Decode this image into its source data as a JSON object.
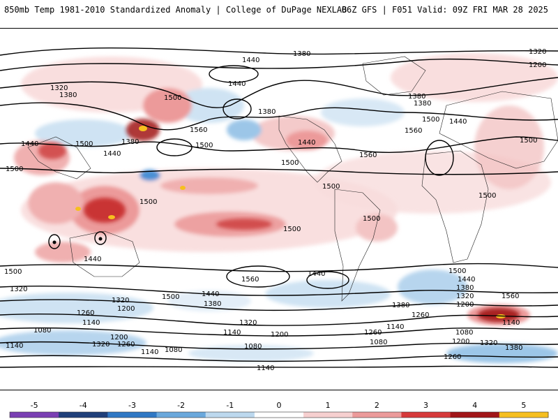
{
  "header": {
    "title_left": "850mb Temp 1981-2010 Standardized Anomaly | College of DuPage NEXLAB",
    "title_right": "06Z GFS | F051 Valid: 09Z FRI MAR 28 2025"
  },
  "map": {
    "field": "850mb temperature standardized anomaly",
    "projection": "global cylindrical",
    "contour_labels": [
      {
        "id": "l1",
        "text": "1380"
      },
      {
        "id": "l2",
        "text": "1320"
      },
      {
        "id": "l3",
        "text": "1200"
      },
      {
        "id": "l4",
        "text": "1440"
      },
      {
        "id": "l5",
        "text": "1320"
      },
      {
        "id": "l6",
        "text": "1380"
      },
      {
        "id": "l7",
        "text": "1500"
      },
      {
        "id": "l8",
        "text": "1440"
      },
      {
        "id": "l9",
        "text": "1380"
      },
      {
        "id": "l10",
        "text": "1560"
      },
      {
        "id": "l11",
        "text": "1500"
      },
      {
        "id": "l12",
        "text": "1440"
      },
      {
        "id": "l13",
        "text": "1500"
      },
      {
        "id": "l14",
        "text": "1440"
      },
      {
        "id": "l15",
        "text": "1380"
      },
      {
        "id": "l16",
        "text": "1500"
      },
      {
        "id": "l17",
        "text": "1500"
      },
      {
        "id": "l18",
        "text": "1560"
      },
      {
        "id": "l19",
        "text": "1500"
      },
      {
        "id": "l20",
        "text": "1500"
      },
      {
        "id": "l21",
        "text": "1500"
      },
      {
        "id": "l22",
        "text": "1440"
      },
      {
        "id": "l23",
        "text": "1500"
      },
      {
        "id": "l24",
        "text": "1560"
      },
      {
        "id": "l25",
        "text": "1500"
      },
      {
        "id": "l26",
        "text": "1380"
      },
      {
        "id": "l27",
        "text": "1440"
      },
      {
        "id": "l28",
        "text": "1500"
      },
      {
        "id": "l29",
        "text": "1380"
      },
      {
        "id": "l30",
        "text": "1500"
      },
      {
        "id": "l31",
        "text": "1440"
      },
      {
        "id": "l32",
        "text": "1380"
      },
      {
        "id": "l33",
        "text": "1260"
      },
      {
        "id": "l34",
        "text": "1320"
      },
      {
        "id": "l35",
        "text": "1200"
      },
      {
        "id": "l36",
        "text": "1140"
      },
      {
        "id": "l37",
        "text": "1080"
      },
      {
        "id": "l38",
        "text": "1200"
      },
      {
        "id": "l39",
        "text": "1320"
      },
      {
        "id": "l40",
        "text": "1260"
      },
      {
        "id": "l41",
        "text": "1140"
      },
      {
        "id": "l42",
        "text": "1080"
      },
      {
        "id": "l43",
        "text": "1260"
      },
      {
        "id": "l44",
        "text": "1320"
      },
      {
        "id": "l45",
        "text": "1140"
      },
      {
        "id": "l46",
        "text": "1200"
      },
      {
        "id": "l47",
        "text": "1080"
      },
      {
        "id": "l48",
        "text": "1140"
      },
      {
        "id": "l49",
        "text": "1380"
      },
      {
        "id": "l50",
        "text": "1260"
      },
      {
        "id": "l51",
        "text": "1140"
      },
      {
        "id": "l52",
        "text": "1080"
      },
      {
        "id": "l53",
        "text": "1500"
      },
      {
        "id": "l54",
        "text": "1440"
      },
      {
        "id": "l55",
        "text": "1380"
      },
      {
        "id": "l56",
        "text": "1320"
      },
      {
        "id": "l57",
        "text": "1200"
      },
      {
        "id": "l58",
        "text": "1560"
      },
      {
        "id": "l59",
        "text": "1140"
      },
      {
        "id": "l60",
        "text": "1080"
      },
      {
        "id": "l61",
        "text": "1200"
      },
      {
        "id": "l62",
        "text": "1320"
      },
      {
        "id": "l63",
        "text": "1260"
      },
      {
        "id": "l64",
        "text": "1380"
      },
      {
        "id": "l65",
        "text": "1500"
      },
      {
        "id": "l66",
        "text": "1440"
      },
      {
        "id": "l67",
        "text": "1560"
      },
      {
        "id": "l68",
        "text": "1500"
      },
      {
        "id": "l69",
        "text": "1440"
      },
      {
        "id": "l70",
        "text": "1320"
      },
      {
        "id": "l71",
        "text": "1140"
      }
    ]
  },
  "colorbar": {
    "ticks": [
      "-5",
      "-4",
      "-3",
      "-2",
      "-1",
      "0",
      "1",
      "2",
      "3",
      "4",
      "5"
    ],
    "colors": [
      "#7a3fb3",
      "#1f3f7a",
      "#2f78c4",
      "#6aa8dc",
      "#bcd8ee",
      "#ffffff",
      "#f6cfcf",
      "#ec9a9a",
      "#d6393a",
      "#a11518",
      "#f6bf1f"
    ]
  }
}
